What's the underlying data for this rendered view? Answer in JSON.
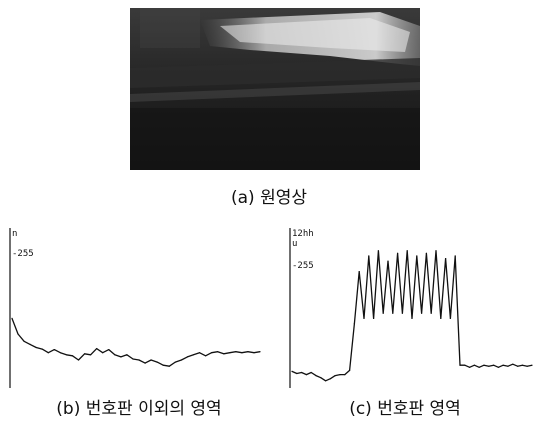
{
  "captions": {
    "original": "(a) 원영상",
    "outside_plate": "(b) 번호판 이외의 영역",
    "plate_region": "(c) 번호판 영역"
  },
  "chart_data": [
    {
      "type": "line",
      "panel": "b",
      "ylim": [
        0,
        300
      ],
      "tick_labels": [
        "n",
        "-255"
      ],
      "grid": false,
      "series": [
        {
          "values": [
            130,
            100,
            86,
            80,
            74,
            71,
            64,
            70,
            64,
            60,
            58,
            50,
            62,
            60,
            72,
            64,
            70,
            60,
            56,
            60,
            52,
            50,
            44,
            50,
            46,
            40,
            38,
            46,
            50,
            56,
            60,
            64,
            58,
            64,
            66,
            62,
            64,
            66,
            64,
            66,
            64,
            66
          ]
        }
      ]
    },
    {
      "type": "line",
      "panel": "c",
      "ylim": [
        0,
        300
      ],
      "tick_labels": [
        "12hh",
        "u",
        "-255"
      ],
      "grid": false,
      "series": [
        {
          "values": [
            28,
            24,
            26,
            22,
            26,
            20,
            16,
            10,
            14,
            20,
            22,
            22,
            30,
            120,
            220,
            130,
            250,
            130,
            260,
            140,
            240,
            140,
            255,
            140,
            260,
            130,
            250,
            140,
            255,
            140,
            260,
            130,
            245,
            130,
            250,
            40,
            40,
            36,
            40,
            36,
            40,
            38,
            40,
            36,
            40,
            38,
            42,
            38,
            40,
            38,
            40
          ]
        }
      ]
    }
  ]
}
